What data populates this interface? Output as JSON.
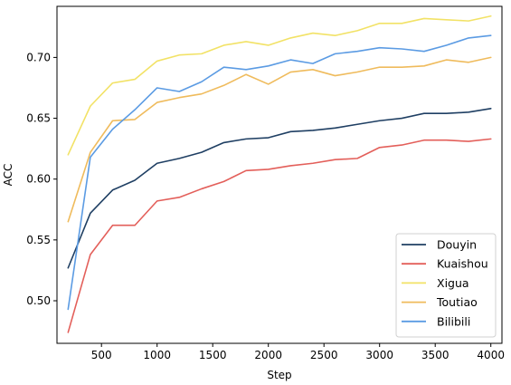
{
  "chart_data": {
    "type": "line",
    "title": "",
    "xlabel": "Step",
    "ylabel": "ACC",
    "xlim": [
      100,
      4100
    ],
    "ylim": [
      0.465,
      0.742
    ],
    "xticks": [
      500,
      1000,
      1500,
      2000,
      2500,
      3000,
      3500,
      4000
    ],
    "xtick_labels": [
      "500",
      "1000",
      "1500",
      "2000",
      "2500",
      "3000",
      "3500",
      "4000"
    ],
    "yticks": [
      0.5,
      0.55,
      0.6,
      0.65,
      0.7
    ],
    "ytick_labels": [
      "0.50",
      "0.55",
      "0.60",
      "0.65",
      "0.70"
    ],
    "grid": false,
    "legend_position": "bottom-right",
    "x": [
      200,
      400,
      600,
      800,
      1000,
      1200,
      1400,
      1600,
      1800,
      2000,
      2200,
      2400,
      2600,
      2800,
      3000,
      3200,
      3400,
      3600,
      3800,
      4000
    ],
    "series": [
      {
        "name": "Douyin",
        "color": "#1f3f63",
        "values": [
          0.527,
          0.572,
          0.591,
          0.599,
          0.613,
          0.617,
          0.622,
          0.63,
          0.633,
          0.634,
          0.639,
          0.64,
          0.642,
          0.645,
          0.648,
          0.65,
          0.654,
          0.654,
          0.655,
          0.658
        ]
      },
      {
        "name": "Kuaishou",
        "color": "#e35f5a",
        "values": [
          0.474,
          0.538,
          0.562,
          0.562,
          0.582,
          0.585,
          0.592,
          0.598,
          0.607,
          0.608,
          0.611,
          0.613,
          0.616,
          0.617,
          0.626,
          0.628,
          0.632,
          0.632,
          0.631,
          0.633
        ]
      },
      {
        "name": "Xigua",
        "color": "#f2e266",
        "values": [
          0.62,
          0.66,
          0.679,
          0.682,
          0.697,
          0.702,
          0.703,
          0.71,
          0.713,
          0.71,
          0.716,
          0.72,
          0.718,
          0.722,
          0.728,
          0.728,
          0.732,
          0.731,
          0.73,
          0.734
        ]
      },
      {
        "name": "Toutiao",
        "color": "#efbb5c",
        "values": [
          0.565,
          0.622,
          0.648,
          0.649,
          0.663,
          0.667,
          0.67,
          0.677,
          0.686,
          0.678,
          0.688,
          0.69,
          0.685,
          0.688,
          0.692,
          0.692,
          0.693,
          0.698,
          0.696,
          0.7
        ]
      },
      {
        "name": "Bilibili",
        "color": "#5b9be3",
        "values": [
          0.493,
          0.618,
          0.641,
          0.657,
          0.675,
          0.672,
          0.68,
          0.692,
          0.69,
          0.693,
          0.698,
          0.695,
          0.703,
          0.705,
          0.708,
          0.707,
          0.705,
          0.71,
          0.716,
          0.718
        ]
      }
    ]
  }
}
